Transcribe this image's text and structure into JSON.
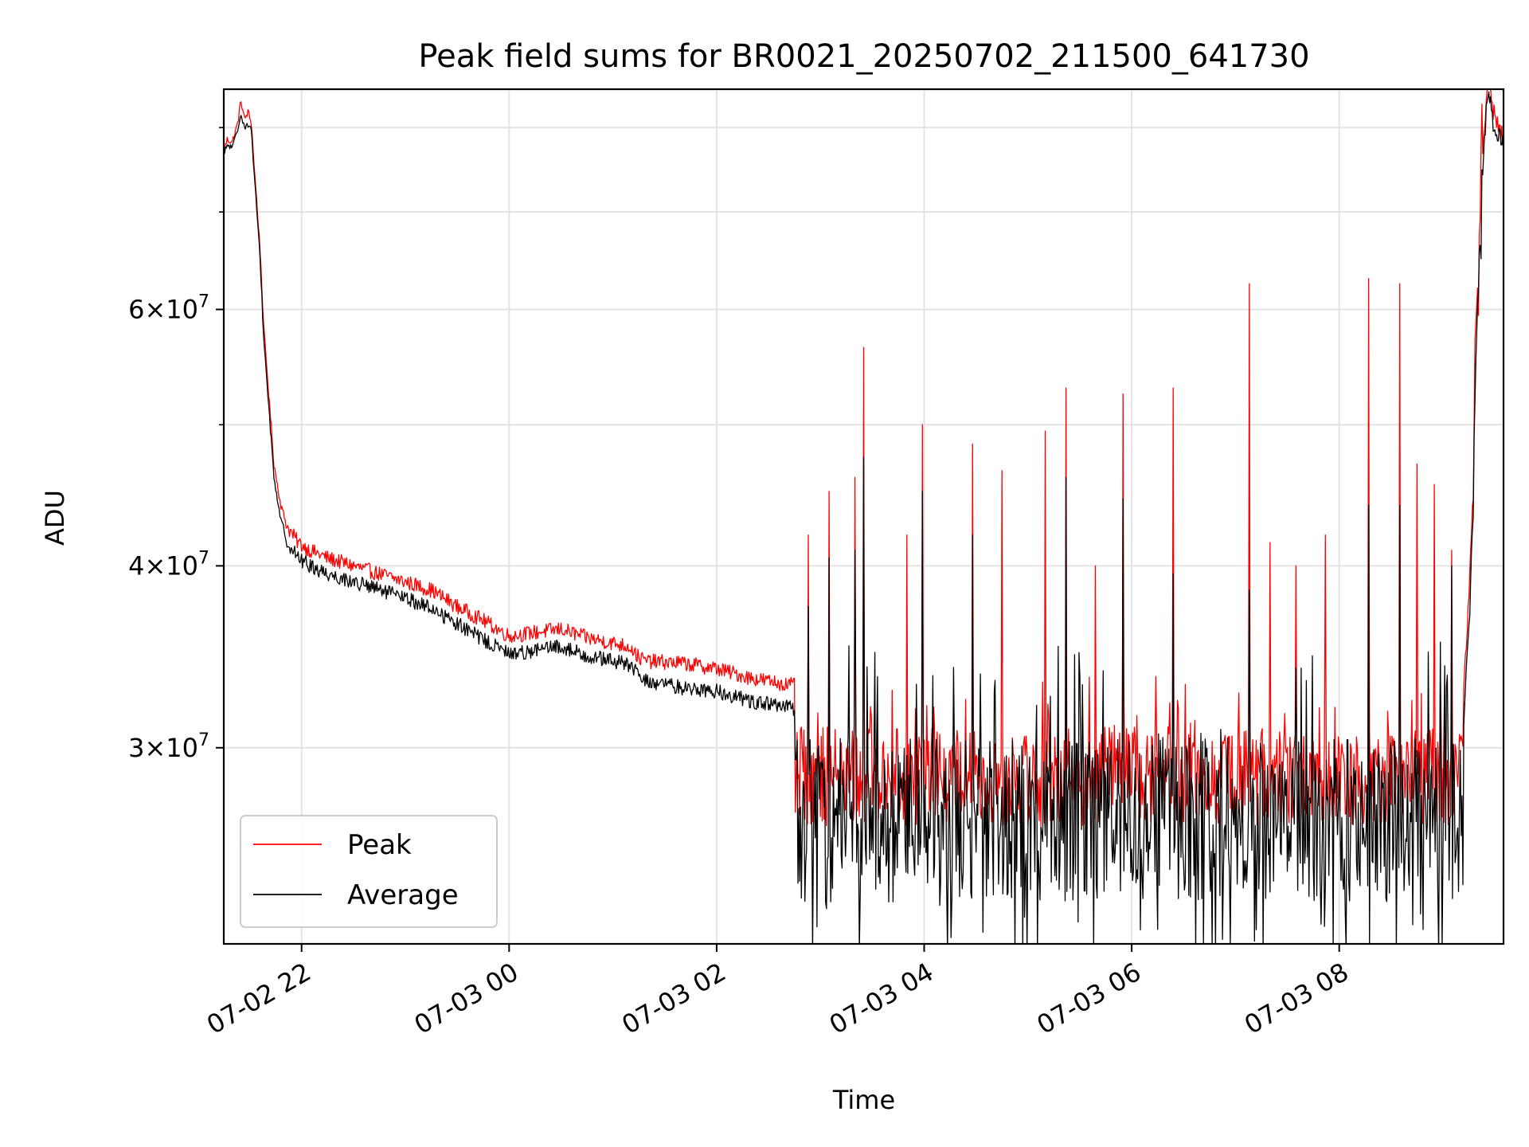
{
  "chart_data": {
    "type": "line",
    "title": "Peak field sums for BR0021_20250702_211500_641730",
    "xlabel": "Time",
    "ylabel": "ADU",
    "yscale": "log",
    "ylim": [
      22000000,
      85000000
    ],
    "xlim": [
      "2025-07-02T21:15:00",
      "2025-07-03T09:35:00"
    ],
    "grid": true,
    "legend_position": "lower-left",
    "x_ticks": [
      "07-02 22",
      "07-03 00",
      "07-03 02",
      "07-03 04",
      "07-03 06",
      "07-03 08"
    ],
    "x_tick_times": [
      "2025-07-02T22:00:00",
      "2025-07-03T00:00:00",
      "2025-07-03T02:00:00",
      "2025-07-03T04:00:00",
      "2025-07-03T06:00:00",
      "2025-07-03T08:00:00"
    ],
    "y_ticks": [
      {
        "value": 30000000,
        "mantissa": "3",
        "exponent": "7"
      },
      {
        "value": 40000000,
        "mantissa": "4",
        "exponent": "7"
      },
      {
        "value": 60000000,
        "mantissa": "6",
        "exponent": "7"
      }
    ],
    "y_minor_ticks": [
      50000000,
      70000000,
      80000000
    ],
    "series": [
      {
        "name": "Peak",
        "color": "#ff0000",
        "points": [
          [
            "2025-07-02T21:15:00",
            77000000
          ],
          [
            "2025-07-02T21:17:00",
            78500000
          ],
          [
            "2025-07-02T21:20:00",
            78200000
          ],
          [
            "2025-07-02T21:23:00",
            80500000
          ],
          [
            "2025-07-02T21:25:00",
            83500000
          ],
          [
            "2025-07-02T21:27:00",
            81000000
          ],
          [
            "2025-07-02T21:29:00",
            82000000
          ],
          [
            "2025-07-02T21:31:00",
            80500000
          ],
          [
            "2025-07-02T21:33:00",
            74000000
          ],
          [
            "2025-07-02T21:36:00",
            66000000
          ],
          [
            "2025-07-02T21:38:00",
            58500000
          ],
          [
            "2025-07-02T21:41:00",
            52500000
          ],
          [
            "2025-07-02T21:44:00",
            47000000
          ],
          [
            "2025-07-02T21:48:00",
            44000000
          ],
          [
            "2025-07-02T21:52:00",
            42500000
          ],
          [
            "2025-07-02T21:58:00",
            41500000
          ],
          [
            "2025-07-02T22:05:00",
            41000000
          ],
          [
            "2025-07-02T22:15:00",
            40500000
          ],
          [
            "2025-07-02T22:30:00",
            40000000
          ],
          [
            "2025-07-02T22:45:00",
            39500000
          ],
          [
            "2025-07-02T23:00:00",
            39000000
          ],
          [
            "2025-07-02T23:15:00",
            38500000
          ],
          [
            "2025-07-02T23:30:00",
            37500000
          ],
          [
            "2025-07-02T23:45:00",
            36700000
          ],
          [
            "2025-07-03T00:00:00",
            35800000
          ],
          [
            "2025-07-03T00:15:00",
            36000000
          ],
          [
            "2025-07-03T00:30:00",
            36200000
          ],
          [
            "2025-07-03T00:45:00",
            35700000
          ],
          [
            "2025-07-03T01:00:00",
            35400000
          ],
          [
            "2025-07-03T01:10:00",
            35200000
          ],
          [
            "2025-07-03T01:15:00",
            34600000
          ],
          [
            "2025-07-03T01:20:00",
            34400000
          ],
          [
            "2025-07-03T01:40:00",
            34300000
          ],
          [
            "2025-07-03T02:00:00",
            34000000
          ],
          [
            "2025-07-03T02:20:00",
            33500000
          ],
          [
            "2025-07-03T02:45:00",
            33100000
          ]
        ],
        "noisy_segment": {
          "start": "2025-07-03T02:45:00",
          "end": "2025-07-03T09:12:00",
          "baseline": 28800000,
          "low": 26500000,
          "high": 31000000,
          "spikes": [
            [
              "2025-07-03T02:53:00",
              42000000
            ],
            [
              "2025-07-03T03:05:00",
              45000000
            ],
            [
              "2025-07-03T03:20:00",
              46000000
            ],
            [
              "2025-07-03T03:25:00",
              56500000
            ],
            [
              "2025-07-03T03:50:00",
              42000000
            ],
            [
              "2025-07-03T03:59:00",
              50000000
            ],
            [
              "2025-07-03T04:28:00",
              48500000
            ],
            [
              "2025-07-03T04:45:00",
              46500000
            ],
            [
              "2025-07-03T05:10:00",
              49500000
            ],
            [
              "2025-07-03T05:22:00",
              53000000
            ],
            [
              "2025-07-03T05:39:00",
              40000000
            ],
            [
              "2025-07-03T05:55:00",
              52500000
            ],
            [
              "2025-07-03T06:24:00",
              53000000
            ],
            [
              "2025-07-03T07:08:00",
              62500000
            ],
            [
              "2025-07-03T07:20:00",
              41500000
            ],
            [
              "2025-07-03T07:35:00",
              40000000
            ],
            [
              "2025-07-03T07:52:00",
              42000000
            ],
            [
              "2025-07-03T08:17:00",
              63000000
            ],
            [
              "2025-07-03T08:35:00",
              62500000
            ],
            [
              "2025-07-03T08:45:00",
              47000000
            ],
            [
              "2025-07-03T08:55:00",
              45500000
            ],
            [
              "2025-07-03T09:05:00",
              41000000
            ]
          ]
        },
        "end_points": [
          [
            "2025-07-03T09:12:00",
            33000000
          ],
          [
            "2025-07-03T09:15:00",
            38000000
          ],
          [
            "2025-07-03T09:17:00",
            44000000
          ],
          [
            "2025-07-03T09:19:00",
            58000000
          ],
          [
            "2025-07-03T09:21:00",
            68000000
          ],
          [
            "2025-07-03T09:23:00",
            76000000
          ],
          [
            "2025-07-03T09:25:00",
            84000000
          ],
          [
            "2025-07-03T09:27:00",
            85000000
          ],
          [
            "2025-07-03T09:29:00",
            82000000
          ],
          [
            "2025-07-03T09:31:00",
            81000000
          ],
          [
            "2025-07-03T09:33:00",
            80000000
          ],
          [
            "2025-07-03T09:35:00",
            78500000
          ]
        ]
      },
      {
        "name": "Average",
        "color": "#000000",
        "points": [
          [
            "2025-07-02T21:15:00",
            76500000
          ],
          [
            "2025-07-02T21:17:00",
            77800000
          ],
          [
            "2025-07-02T21:20:00",
            77500000
          ],
          [
            "2025-07-02T21:23:00",
            79500000
          ],
          [
            "2025-07-02T21:25:00",
            82000000
          ],
          [
            "2025-07-02T21:27:00",
            80000000
          ],
          [
            "2025-07-02T21:29:00",
            80500000
          ],
          [
            "2025-07-02T21:31:00",
            79500000
          ],
          [
            "2025-07-02T21:33:00",
            73000000
          ],
          [
            "2025-07-02T21:36:00",
            65000000
          ],
          [
            "2025-07-02T21:38:00",
            57500000
          ],
          [
            "2025-07-02T21:41:00",
            51500000
          ],
          [
            "2025-07-02T21:44:00",
            46000000
          ],
          [
            "2025-07-02T21:48:00",
            43000000
          ],
          [
            "2025-07-02T21:52:00",
            41500000
          ],
          [
            "2025-07-02T21:58:00",
            40500000
          ],
          [
            "2025-07-02T22:05:00",
            40000000
          ],
          [
            "2025-07-02T22:15:00",
            39500000
          ],
          [
            "2025-07-02T22:30:00",
            39000000
          ],
          [
            "2025-07-02T22:45:00",
            38500000
          ],
          [
            "2025-07-02T23:00:00",
            38000000
          ],
          [
            "2025-07-02T23:15:00",
            37400000
          ],
          [
            "2025-07-02T23:30:00",
            36500000
          ],
          [
            "2025-07-02T23:45:00",
            35600000
          ],
          [
            "2025-07-03T00:00:00",
            34800000
          ],
          [
            "2025-07-03T00:15:00",
            35000000
          ],
          [
            "2025-07-03T00:30:00",
            35200000
          ],
          [
            "2025-07-03T00:45:00",
            34700000
          ],
          [
            "2025-07-03T01:00:00",
            34400000
          ],
          [
            "2025-07-03T01:10:00",
            34200000
          ],
          [
            "2025-07-03T01:15:00",
            33600000
          ],
          [
            "2025-07-03T01:20:00",
            33300000
          ],
          [
            "2025-07-03T01:40:00",
            33000000
          ],
          [
            "2025-07-03T02:00:00",
            32800000
          ],
          [
            "2025-07-03T02:20:00",
            32300000
          ],
          [
            "2025-07-03T02:45:00",
            31900000
          ]
        ],
        "noisy_segment": {
          "start": "2025-07-03T02:45:00",
          "end": "2025-07-03T09:12:00",
          "baseline": 27800000,
          "low": 23500000,
          "high": 30500000,
          "spikes": [
            [
              "2025-07-03T02:53:00",
              37500000
            ],
            [
              "2025-07-03T03:05:00",
              40500000
            ],
            [
              "2025-07-03T03:20:00",
              41000000
            ],
            [
              "2025-07-03T03:25:00",
              47500000
            ],
            [
              "2025-07-03T03:59:00",
              45000000
            ],
            [
              "2025-07-03T04:28:00",
              42000000
            ],
            [
              "2025-07-03T05:22:00",
              46000000
            ],
            [
              "2025-07-03T05:55:00",
              44500000
            ],
            [
              "2025-07-03T06:24:00",
              39500000
            ],
            [
              "2025-07-03T07:08:00",
              38500000
            ],
            [
              "2025-07-03T08:17:00",
              44000000
            ],
            [
              "2025-07-03T08:35:00",
              44000000
            ],
            [
              "2025-07-03T09:05:00",
              40000000
            ]
          ],
          "dips": [
            [
              "2025-07-03T02:58:00",
              22600000
            ],
            [
              "2025-07-03T06:57:00",
              22000000
            ],
            [
              "2025-07-03T07:12:00",
              22500000
            ]
          ]
        },
        "end_points": [
          [
            "2025-07-03T09:12:00",
            31500000
          ],
          [
            "2025-07-03T09:15:00",
            36000000
          ],
          [
            "2025-07-03T09:17:00",
            42000000
          ],
          [
            "2025-07-03T09:19:00",
            55000000
          ],
          [
            "2025-07-03T09:21:00",
            65000000
          ],
          [
            "2025-07-03T09:23:00",
            74000000
          ],
          [
            "2025-07-03T09:25:00",
            82000000
          ],
          [
            "2025-07-03T09:27:00",
            84000000
          ],
          [
            "2025-07-03T09:29:00",
            80500000
          ],
          [
            "2025-07-03T09:31:00",
            79500000
          ],
          [
            "2025-07-03T09:33:00",
            79000000
          ],
          [
            "2025-07-03T09:35:00",
            77500000
          ]
        ]
      }
    ]
  }
}
